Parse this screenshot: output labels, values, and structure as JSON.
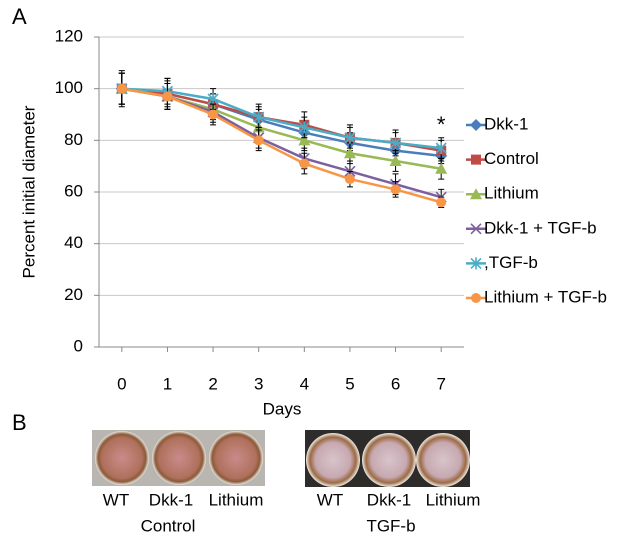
{
  "panel_labels": [
    "A",
    "B"
  ],
  "chart_data": {
    "type": "line",
    "ylabel": "Percent initial diameter",
    "xlabel": "Days",
    "annotation": "*",
    "x": [
      0,
      1,
      2,
      3,
      4,
      5,
      6,
      7
    ],
    "xlim": [
      -0.5,
      7.5
    ],
    "xticks": [
      0,
      1,
      2,
      3,
      4,
      5,
      6,
      7
    ],
    "ylim": [
      0,
      120
    ],
    "yticks": [
      0,
      20,
      40,
      60,
      80,
      100,
      120
    ],
    "grid": true,
    "series": [
      {
        "name": "Dkk-1",
        "color": "#4a7ebb",
        "marker": "diamond",
        "values": [
          100,
          98,
          94,
          88,
          83,
          79,
          76,
          74
        ],
        "errors": [
          6,
          5,
          4,
          4,
          4,
          4,
          4,
          3
        ]
      },
      {
        "name": "Control",
        "color": "#be4b48",
        "marker": "square",
        "values": [
          100,
          98,
          94,
          89,
          86,
          81,
          79,
          76
        ],
        "errors": [
          7,
          6,
          4,
          5,
          5,
          5,
          5,
          4
        ]
      },
      {
        "name": "Lithium",
        "color": "#98b954",
        "marker": "triangle",
        "values": [
          100,
          97,
          92,
          85,
          80,
          75,
          72,
          69
        ],
        "errors": [
          6,
          5,
          4,
          4,
          4,
          4,
          4,
          4
        ]
      },
      {
        "name": "Dkk-1 + TGF-b",
        "color": "#7d60a0",
        "marker": "x",
        "values": [
          100,
          97,
          91,
          81,
          73,
          68,
          63,
          58
        ],
        "errors": [
          6,
          5,
          4,
          4,
          4,
          4,
          4,
          3
        ]
      },
      {
        "name": ",TGF-b",
        "color": "#4bacc6",
        "marker": "star",
        "values": [
          100,
          99,
          96,
          89,
          85,
          81,
          79,
          77
        ],
        "errors": [
          6,
          5,
          4,
          4,
          4,
          4,
          4,
          4
        ]
      },
      {
        "name": "Lithium + TGF-b",
        "color": "#f79646",
        "marker": "circle",
        "values": [
          100,
          97,
          90,
          80,
          71,
          65,
          61,
          56
        ],
        "errors": [
          6,
          5,
          4,
          4,
          4,
          3,
          3,
          2
        ]
      }
    ]
  },
  "panel_b": {
    "groups": [
      {
        "name": "Control",
        "wells": [
          "WT",
          "Dkk-1",
          "Lithium"
        ]
      },
      {
        "name": "TGF-b",
        "wells": [
          "WT",
          "Dkk-1",
          "Lithium"
        ]
      }
    ]
  }
}
